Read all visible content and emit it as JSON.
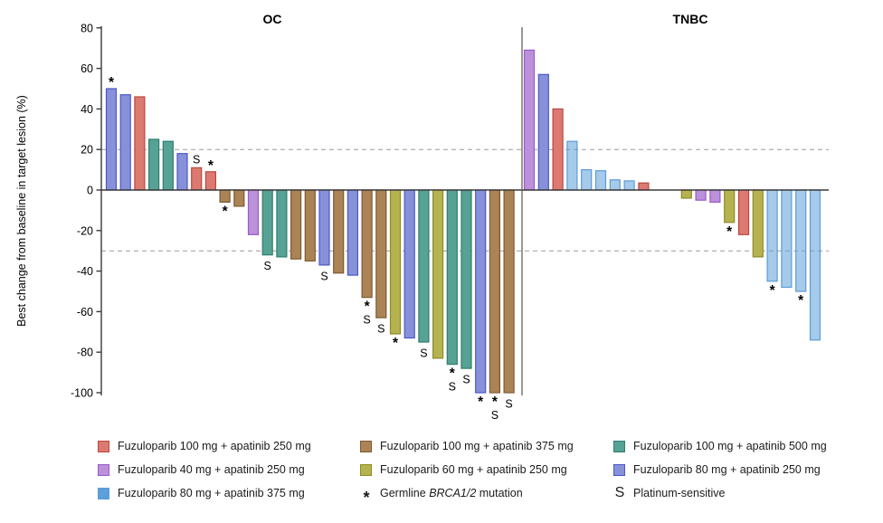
{
  "chart_data": {
    "type": "bar",
    "subtype": "waterfall",
    "title": "",
    "ylabel": "Best change from baseline in target lesion (%)",
    "ylim": [
      -100,
      80
    ],
    "yticks": [
      80,
      60,
      40,
      20,
      0,
      -20,
      -40,
      -60,
      -80,
      -100
    ],
    "reference_lines": [
      20,
      -30
    ],
    "grid": "off",
    "legend_position": "bottom",
    "symbol_meanings": {
      "*": "Germline BRCA1/2 mutation",
      "S": "Platinum-sensitive"
    },
    "arms": {
      "fuzu100_apa250": {
        "label": "Fuzuloparib 100 mg + apatinib 250 mg",
        "fill": "#DC7A71",
        "stroke": "#B9473F"
      },
      "fuzu40_apa250": {
        "label": "Fuzuloparib 40 mg + apatinib 250 mg",
        "fill": "#BD90DA",
        "stroke": "#9A5BC8"
      },
      "fuzu80_apa375": {
        "label": "Fuzuloparib 80 mg + apatinib 375 mg",
        "fill": "#5D9FD9",
        "stroke": "#5C9CD6"
      },
      "fuzu100_apa375": {
        "label": "Fuzuloparib 100 mg + apatinib 375 mg",
        "fill": "#AC8355",
        "stroke": "#7C5B33"
      },
      "fuzu60_apa250": {
        "label": "Fuzuloparib 60 mg + apatinib 250 mg",
        "fill": "#B5B250",
        "stroke": "#8E8C28"
      },
      "fuzu100_apa500": {
        "label": "Fuzuloparib 100 mg + apatinib 500 mg",
        "fill": "#56A294",
        "stroke": "#2E7D6E"
      },
      "fuzu80_apa250": {
        "label": "Fuzuloparib 80 mg + apatinib 250 mg",
        "fill": "#8691DA",
        "stroke": "#4C57C5"
      }
    },
    "groups": [
      {
        "label": "OC",
        "bars": [
          {
            "value": 50,
            "arm": "fuzu80_apa250",
            "symbols": [
              "*"
            ]
          },
          {
            "value": 47,
            "arm": "fuzu80_apa250"
          },
          {
            "value": 46,
            "arm": "fuzu100_apa250"
          },
          {
            "value": 25,
            "arm": "fuzu100_apa500"
          },
          {
            "value": 24,
            "arm": "fuzu100_apa500"
          },
          {
            "value": 18,
            "arm": "fuzu80_apa250"
          },
          {
            "value": 11,
            "arm": "fuzu100_apa250",
            "symbols": [
              "S"
            ]
          },
          {
            "value": 9,
            "arm": "fuzu100_apa250",
            "symbols": [
              "*"
            ]
          },
          {
            "value": -6,
            "arm": "fuzu100_apa375",
            "symbols": [
              "*"
            ]
          },
          {
            "value": -8,
            "arm": "fuzu100_apa375"
          },
          {
            "value": -22,
            "arm": "fuzu40_apa250"
          },
          {
            "value": -32,
            "arm": "fuzu100_apa500",
            "symbols": [
              "S"
            ]
          },
          {
            "value": -33,
            "arm": "fuzu100_apa500"
          },
          {
            "value": -34,
            "arm": "fuzu100_apa375"
          },
          {
            "value": -35,
            "arm": "fuzu100_apa375"
          },
          {
            "value": -37,
            "arm": "fuzu80_apa250",
            "symbols": [
              "S"
            ]
          },
          {
            "value": -41,
            "arm": "fuzu100_apa375"
          },
          {
            "value": -42,
            "arm": "fuzu80_apa250"
          },
          {
            "value": -53,
            "arm": "fuzu100_apa375",
            "symbols": [
              "*",
              "S"
            ]
          },
          {
            "value": -63,
            "arm": "fuzu100_apa375",
            "symbols": [
              "S"
            ]
          },
          {
            "value": -71,
            "arm": "fuzu60_apa250",
            "symbols": [
              "*"
            ]
          },
          {
            "value": -73,
            "arm": "fuzu80_apa250"
          },
          {
            "value": -75,
            "arm": "fuzu100_apa500",
            "symbols": [
              "S"
            ]
          },
          {
            "value": -83,
            "arm": "fuzu60_apa250"
          },
          {
            "value": -86,
            "arm": "fuzu100_apa500",
            "symbols": [
              "*",
              "S"
            ]
          },
          {
            "value": -88,
            "arm": "fuzu100_apa500",
            "symbols": [
              "S"
            ]
          },
          {
            "value": -100,
            "arm": "fuzu80_apa250",
            "symbols": [
              "*"
            ]
          },
          {
            "value": -100,
            "arm": "fuzu100_apa375",
            "symbols": [
              "*",
              "S"
            ]
          },
          {
            "value": -100,
            "arm": "fuzu100_apa375",
            "symbols": [
              "S"
            ]
          }
        ]
      },
      {
        "label": "TNBC",
        "bars": [
          {
            "value": 69,
            "arm": "fuzu40_apa250"
          },
          {
            "value": 57,
            "arm": "fuzu80_apa250"
          },
          {
            "value": 40,
            "arm": "fuzu100_apa250"
          },
          {
            "value": 24,
            "arm": "fuzu80_apa375"
          },
          {
            "value": 10,
            "arm": "fuzu80_apa375"
          },
          {
            "value": 9.5,
            "arm": "fuzu80_apa375"
          },
          {
            "value": 5,
            "arm": "fuzu80_apa375"
          },
          {
            "value": 4.5,
            "arm": "fuzu80_apa375"
          },
          {
            "value": 3.5,
            "arm": "fuzu100_apa250"
          },
          {
            "gap": true
          },
          {
            "gap": true
          },
          {
            "value": -4,
            "arm": "fuzu60_apa250"
          },
          {
            "value": -5,
            "arm": "fuzu40_apa250"
          },
          {
            "value": -6,
            "arm": "fuzu40_apa250"
          },
          {
            "value": -16,
            "arm": "fuzu60_apa250",
            "symbols": [
              "*"
            ]
          },
          {
            "value": -22,
            "arm": "fuzu100_apa250"
          },
          {
            "value": -33,
            "arm": "fuzu60_apa250"
          },
          {
            "value": -45,
            "arm": "fuzu80_apa375",
            "symbols": [
              "*"
            ]
          },
          {
            "value": -48,
            "arm": "fuzu80_apa375"
          },
          {
            "value": -50,
            "arm": "fuzu80_apa375",
            "symbols": [
              "*"
            ]
          },
          {
            "value": -74,
            "arm": "fuzu80_apa375"
          }
        ]
      }
    ]
  },
  "legend": {
    "columns": [
      {
        "items": [
          {
            "marker": "swatch",
            "arm": "fuzu100_apa250",
            "label": "Fuzuloparib 100 mg + apatinib 250 mg"
          },
          {
            "marker": "swatch",
            "arm": "fuzu40_apa250",
            "label": "Fuzuloparib 40 mg + apatinib 250 mg"
          },
          {
            "marker": "swatch",
            "arm": "fuzu80_apa375",
            "label": "Fuzuloparib 80 mg + apatinib 375 mg"
          }
        ]
      },
      {
        "items": [
          {
            "marker": "swatch",
            "arm": "fuzu100_apa375",
            "label": "Fuzuloparib 100 mg + apatinib 375 mg"
          },
          {
            "marker": "swatch",
            "arm": "fuzu60_apa250",
            "label": "Fuzuloparib 60 mg + apatinib 250 mg"
          },
          {
            "marker": "asterisk",
            "label_parts": [
              "Germline ",
              "BRCA1/2",
              " mutation"
            ]
          }
        ]
      },
      {
        "items": [
          {
            "marker": "swatch",
            "arm": "fuzu100_apa500",
            "label": "Fuzuloparib 100 mg + apatinib 500 mg"
          },
          {
            "marker": "swatch",
            "arm": "fuzu80_apa250",
            "label": "Fuzuloparib 80 mg + apatinib 250 mg"
          },
          {
            "marker": "S",
            "label": "Platinum-sensitive"
          }
        ]
      }
    ]
  }
}
